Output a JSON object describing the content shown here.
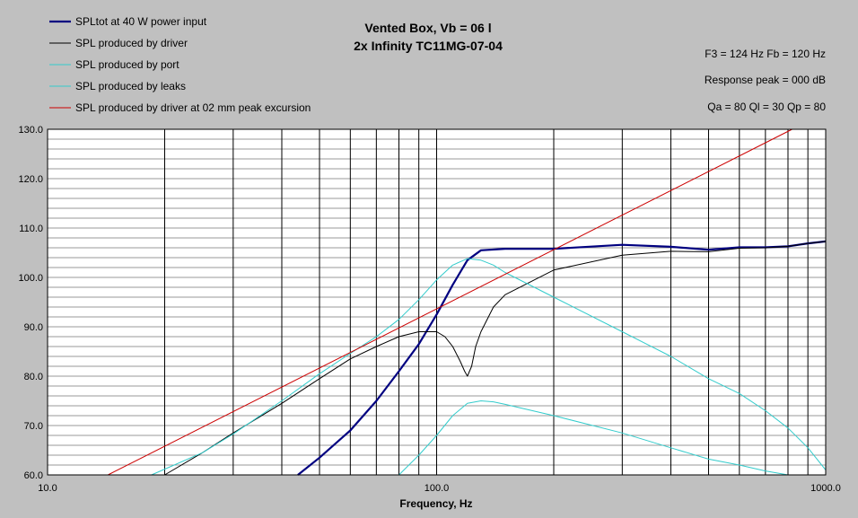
{
  "chart_data": {
    "type": "line",
    "title": "Vented Box, Vb = 06 l",
    "subtitle": "2x Infinity TC11MG-07-04",
    "xlabel": "Frequency, Hz",
    "ylabel": "",
    "x_scale": "log",
    "xlim": [
      10,
      1000
    ],
    "ylim": [
      60,
      130
    ],
    "x_ticks": [
      {
        "value": 10,
        "label": "10.0"
      },
      {
        "value": 100,
        "label": "100.0"
      },
      {
        "value": 1000,
        "label": "1000.0"
      }
    ],
    "y_ticks": [
      {
        "value": 60,
        "label": "60.0"
      },
      {
        "value": 70,
        "label": "70.0"
      },
      {
        "value": 80,
        "label": "80.0"
      },
      {
        "value": 90,
        "label": "90.0"
      },
      {
        "value": 100,
        "label": "100.0"
      },
      {
        "value": 110,
        "label": "110.0"
      },
      {
        "value": 120,
        "label": "120.0"
      },
      {
        "value": 130,
        "label": "130.0"
      }
    ],
    "grid": true,
    "legend_position": "top-left",
    "annotations": [
      "F3 = 124 Hz  Fb = 120 Hz",
      "Response peak = 000 dB",
      "Qa = 80  Ql = 30  Qp = 80"
    ],
    "series": [
      {
        "name": "SPLtot at 40 W power input",
        "color": "#000080",
        "width": 2.2,
        "x": [
          44,
          50,
          60,
          70,
          80,
          90,
          100,
          110,
          120,
          130,
          150,
          200,
          300,
          400,
          500,
          600,
          700,
          800,
          900,
          1000
        ],
        "y": [
          60,
          63.5,
          69,
          75,
          81,
          86.5,
          92.5,
          98.5,
          103.5,
          105.5,
          105.8,
          105.8,
          106.6,
          106.2,
          105.6,
          106.1,
          106.1,
          106.3,
          106.9,
          107.3
        ]
      },
      {
        "name": "SPL produced by driver",
        "color": "#000000",
        "width": 1,
        "x": [
          20,
          25,
          30,
          40,
          50,
          60,
          70,
          80,
          90,
          100,
          105,
          110,
          115,
          118,
          120,
          123,
          126,
          130,
          140,
          150,
          200,
          300,
          400,
          500,
          600,
          700,
          800,
          900,
          1000
        ],
        "y": [
          60,
          64.5,
          68.5,
          74.5,
          79.5,
          83.5,
          86,
          88,
          89,
          89,
          88,
          86,
          83,
          81,
          80,
          82,
          86,
          89,
          94,
          96.5,
          101.5,
          104.5,
          105.3,
          105.2,
          105.9,
          106,
          106.3,
          106.9,
          107.3
        ]
      },
      {
        "name": "SPL produced by port",
        "color": "#33cccc",
        "width": 1,
        "x": [
          18.5,
          25,
          30,
          40,
          50,
          60,
          70,
          80,
          90,
          100,
          110,
          120,
          130,
          140,
          150,
          200,
          300,
          400,
          500,
          600,
          700,
          800,
          900,
          1000
        ],
        "y": [
          60,
          64.5,
          68.3,
          75,
          80.5,
          84.6,
          88,
          91.5,
          95.5,
          99.5,
          102.5,
          103.8,
          103.5,
          102.5,
          101,
          96,
          89,
          84,
          79.5,
          76.5,
          73,
          69.5,
          65.5,
          61
        ]
      },
      {
        "name": "SPL produced by leaks",
        "color": "#33cccc",
        "width": 1,
        "x": [
          80,
          90,
          100,
          110,
          120,
          130,
          140,
          150,
          200,
          300,
          400,
          500,
          600,
          700,
          800
        ],
        "y": [
          60,
          64,
          68,
          72,
          74.5,
          75,
          74.8,
          74.3,
          72,
          68.5,
          65.5,
          63.2,
          62,
          60.8,
          60
        ]
      },
      {
        "name": "SPL produced by driver at 02 mm peak excursion",
        "color": "#cc0000",
        "width": 1,
        "x": [
          14.3,
          820
        ],
        "y": [
          60,
          130
        ]
      }
    ]
  }
}
